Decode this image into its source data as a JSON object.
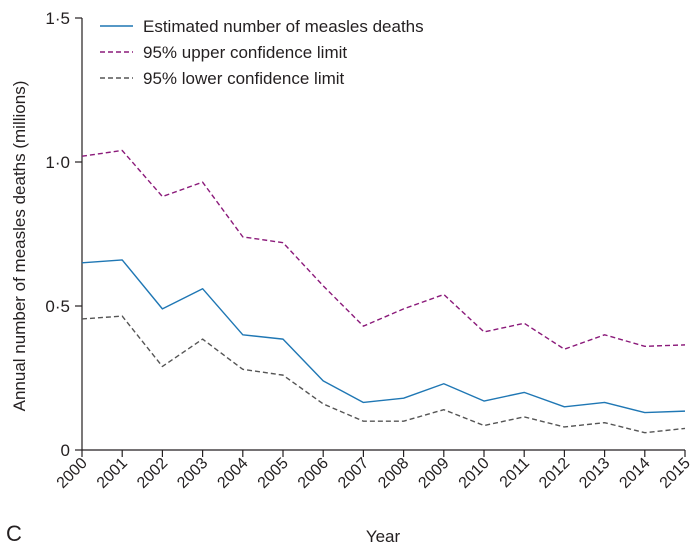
{
  "panel_label": "C",
  "chart_data": {
    "type": "line",
    "xlabel": "Year",
    "ylabel": "Annual number of measles deaths (millions)",
    "x": [
      2000,
      2001,
      2002,
      2003,
      2004,
      2005,
      2006,
      2007,
      2008,
      2009,
      2010,
      2011,
      2012,
      2013,
      2014,
      2015
    ],
    "x_tick_labels": [
      "2000",
      "2001",
      "2002",
      "2003",
      "2004",
      "2005",
      "2006",
      "2007",
      "2008",
      "2009",
      "2010",
      "2011",
      "2012",
      "2013",
      "2014",
      "2015"
    ],
    "y_ticks": [
      0,
      0.5,
      1.0,
      1.5
    ],
    "y_tick_labels": [
      "0",
      "0·5",
      "1·0",
      "1·5"
    ],
    "ylim": [
      0,
      1.5
    ],
    "grid": false,
    "legend_position": "top-left",
    "series": [
      {
        "name": "Estimated number of measles deaths",
        "color": "#1f77b4",
        "style": "solid",
        "values": [
          0.65,
          0.66,
          0.49,
          0.56,
          0.4,
          0.385,
          0.24,
          0.165,
          0.18,
          0.23,
          0.17,
          0.2,
          0.15,
          0.165,
          0.13,
          0.135
        ]
      },
      {
        "name": "95% upper confidence limit",
        "color": "#8b1a7a",
        "style": "dashed",
        "values": [
          1.02,
          1.04,
          0.88,
          0.93,
          0.74,
          0.72,
          0.57,
          0.43,
          0.49,
          0.54,
          0.41,
          0.44,
          0.35,
          0.4,
          0.36,
          0.365
        ]
      },
      {
        "name": "95% lower confidence limit",
        "color": "#555555",
        "style": "dashed",
        "values": [
          0.455,
          0.465,
          0.29,
          0.385,
          0.28,
          0.26,
          0.16,
          0.1,
          0.1,
          0.14,
          0.085,
          0.115,
          0.08,
          0.095,
          0.06,
          0.075
        ]
      }
    ]
  }
}
